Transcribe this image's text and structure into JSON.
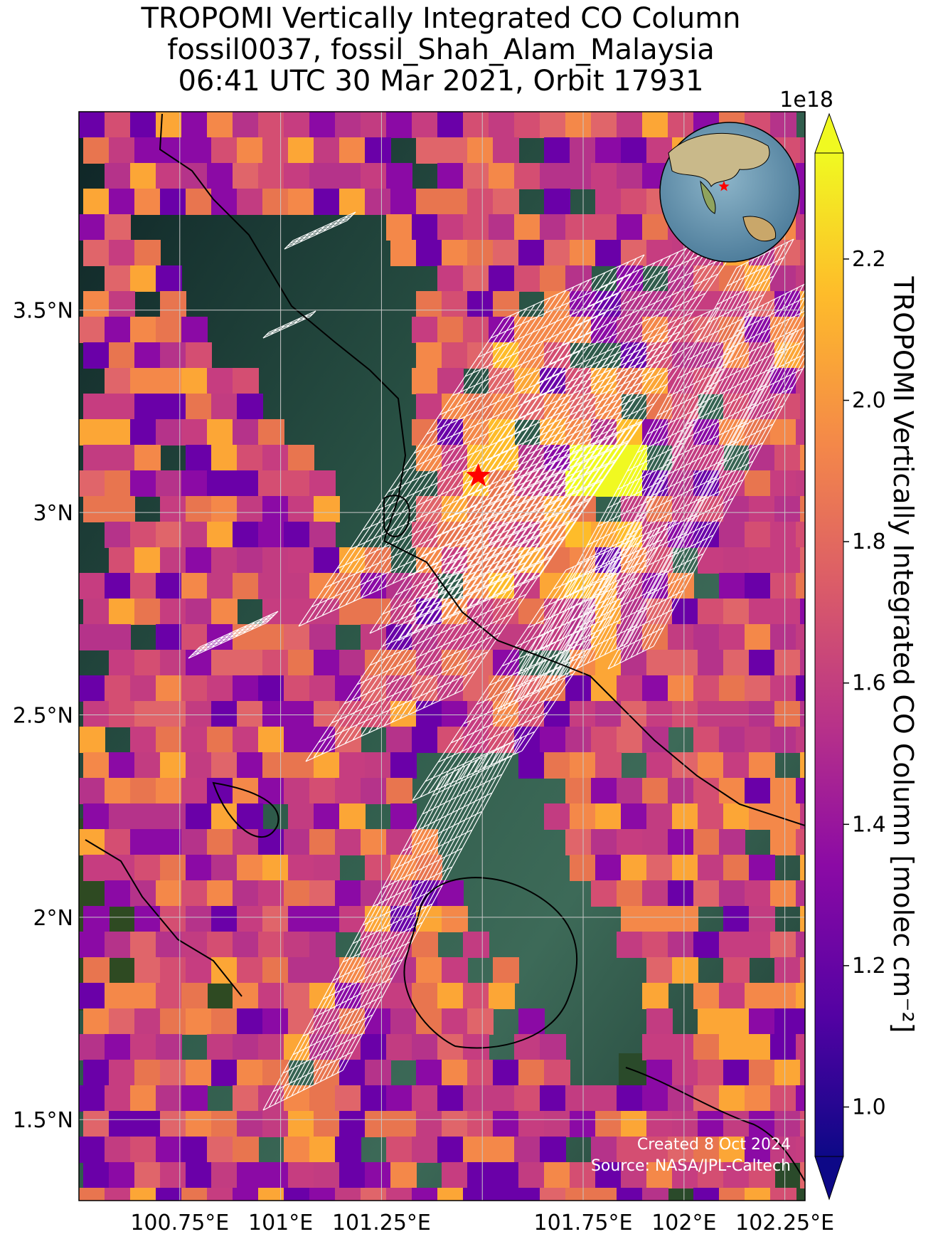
{
  "title": {
    "line1": "TROPOMI Vertically Integrated CO Column",
    "line2": "fossil0037, fossil_Shah_Alam_Malaysia",
    "line3": "06:41 UTC 30 Mar 2021, Orbit 17931"
  },
  "map": {
    "lon_range": [
      100.5,
      102.3
    ],
    "lat_range": [
      1.3,
      3.99
    ],
    "lon_ticks": [
      {
        "value": 100.75,
        "label": "100.75°E"
      },
      {
        "value": 101.0,
        "label": "101°E"
      },
      {
        "value": 101.25,
        "label": "101.25°E"
      },
      {
        "value": 101.5,
        "label": ""
      },
      {
        "value": 101.75,
        "label": "101.75°E"
      },
      {
        "value": 102.0,
        "label": "102°E"
      },
      {
        "value": 102.25,
        "label": "102.25°E"
      }
    ],
    "lat_ticks": [
      {
        "value": 1.5,
        "label": "1.5°N"
      },
      {
        "value": 2.0,
        "label": "2°N"
      },
      {
        "value": 2.5,
        "label": "2.5°N"
      },
      {
        "value": 3.0,
        "label": "3°N"
      },
      {
        "value": 3.5,
        "label": "3.5°N"
      }
    ],
    "source_marker": {
      "lon": 101.49,
      "lat": 3.09,
      "color": "#ff0000"
    },
    "inset_globe": {
      "marker_color": "#ff0000"
    }
  },
  "colorbar": {
    "label": "TROPOMI Vertically Integrated CO Column [molec cm⁻²]",
    "exponent": "1e18",
    "min": 0.93,
    "max": 2.35,
    "ticks": [
      {
        "value": 1.0,
        "label": "1.0"
      },
      {
        "value": 1.2,
        "label": "1.2"
      },
      {
        "value": 1.4,
        "label": "1.4"
      },
      {
        "value": 1.6,
        "label": "1.6"
      },
      {
        "value": 1.8,
        "label": "1.8"
      },
      {
        "value": 2.0,
        "label": "2.0"
      },
      {
        "value": 2.2,
        "label": "2.2"
      }
    ],
    "colormap": "plasma",
    "colors": [
      "#0d0887",
      "#5302a3",
      "#8b0aa5",
      "#b83289",
      "#db5c68",
      "#f48849",
      "#febc2a",
      "#f0f921"
    ]
  },
  "credits": {
    "created": "Created 8 Oct 2024",
    "source": "Source: NASA/JPL-Caltech"
  }
}
